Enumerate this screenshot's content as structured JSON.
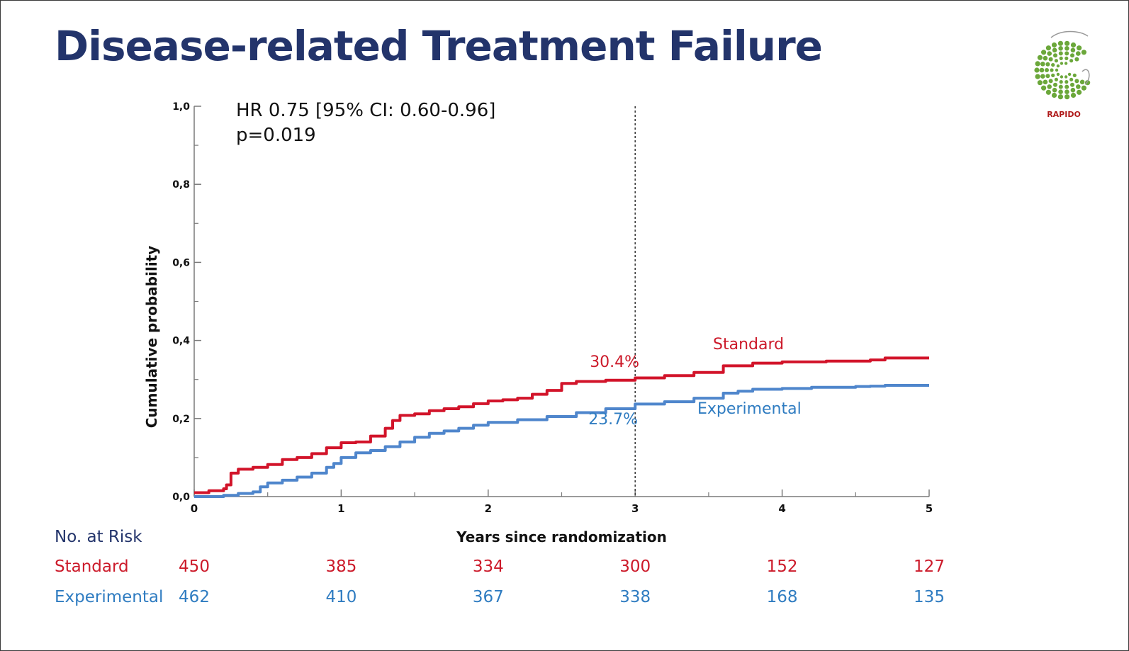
{
  "title": "Disease-related Treatment Failure",
  "logo": {
    "text": "RAPIDO",
    "icon": "rapido-logo-icon",
    "color": "#6ba73a"
  },
  "chart_data": {
    "type": "line",
    "step": true,
    "xlabel": "Years since randomization",
    "ylabel": "Cumulative probability",
    "xlim": [
      0,
      5
    ],
    "ylim": [
      0,
      1.0
    ],
    "x_ticks": [
      0,
      1,
      2,
      3,
      4,
      5
    ],
    "x_tick_labels": [
      "0",
      "1",
      "2",
      "3",
      "4",
      "5"
    ],
    "y_ticks": [
      0,
      0.2,
      0.4,
      0.6,
      0.8,
      1.0
    ],
    "y_tick_labels": [
      "0,0",
      "0,2",
      "0,4",
      "0,6",
      "0,8",
      "1,0"
    ],
    "grid": false,
    "reference_line_x": 3,
    "annotations": {
      "hr": "HR 0.75 [95% CI: 0.60-0.96]",
      "p": "p=0.019",
      "standard_at_3": "30.4%",
      "experimental_at_3": "23.7%"
    },
    "series": [
      {
        "name": "Standard",
        "color": "#d2142a",
        "x": [
          0,
          0.1,
          0.2,
          0.22,
          0.25,
          0.3,
          0.4,
          0.5,
          0.6,
          0.7,
          0.8,
          0.9,
          1.0,
          1.1,
          1.2,
          1.3,
          1.35,
          1.4,
          1.5,
          1.6,
          1.7,
          1.8,
          1.9,
          2.0,
          2.1,
          2.2,
          2.3,
          2.4,
          2.5,
          2.6,
          2.8,
          3.0,
          3.2,
          3.4,
          3.6,
          3.8,
          4.0,
          4.3,
          4.6,
          4.7,
          5.0
        ],
        "y": [
          0.01,
          0.015,
          0.02,
          0.03,
          0.06,
          0.07,
          0.075,
          0.082,
          0.095,
          0.1,
          0.11,
          0.125,
          0.138,
          0.14,
          0.155,
          0.175,
          0.195,
          0.208,
          0.212,
          0.22,
          0.225,
          0.23,
          0.238,
          0.245,
          0.248,
          0.252,
          0.262,
          0.272,
          0.29,
          0.295,
          0.298,
          0.304,
          0.31,
          0.318,
          0.335,
          0.342,
          0.345,
          0.347,
          0.35,
          0.355,
          0.355
        ]
      },
      {
        "name": "Experimental",
        "color": "#4f86cc",
        "x": [
          0,
          0.2,
          0.3,
          0.4,
          0.45,
          0.5,
          0.6,
          0.7,
          0.8,
          0.9,
          0.95,
          1.0,
          1.1,
          1.2,
          1.3,
          1.4,
          1.5,
          1.6,
          1.7,
          1.8,
          1.9,
          2.0,
          2.2,
          2.4,
          2.6,
          2.8,
          3.0,
          3.2,
          3.4,
          3.6,
          3.7,
          3.8,
          4.0,
          4.2,
          4.5,
          4.6,
          4.7,
          5.0
        ],
        "y": [
          0.0,
          0.003,
          0.008,
          0.012,
          0.025,
          0.035,
          0.042,
          0.05,
          0.06,
          0.075,
          0.085,
          0.1,
          0.112,
          0.118,
          0.128,
          0.14,
          0.152,
          0.162,
          0.168,
          0.175,
          0.183,
          0.19,
          0.197,
          0.205,
          0.215,
          0.225,
          0.237,
          0.243,
          0.252,
          0.265,
          0.27,
          0.275,
          0.277,
          0.28,
          0.282,
          0.283,
          0.285,
          0.285
        ]
      }
    ]
  },
  "risk_table": {
    "header": "No. at Risk",
    "times": [
      0,
      1,
      2,
      3,
      4,
      5
    ],
    "rows": [
      {
        "label": "Standard",
        "color": "#cc1a2a",
        "values": [
          "450",
          "385",
          "334",
          "300",
          "152",
          "127"
        ]
      },
      {
        "label": "Experimental",
        "color": "#2f7cc1",
        "values": [
          "462",
          "410",
          "367",
          "338",
          "168",
          "135"
        ]
      }
    ]
  }
}
